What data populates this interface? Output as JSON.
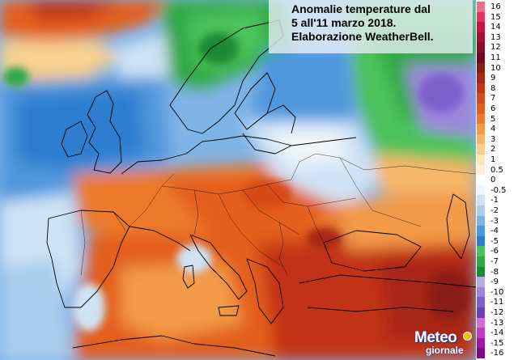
{
  "title": {
    "line1": "Anomalie temperature dal",
    "line2": "5 all'11 marzo 2018.",
    "line3": "Elaborazione WeatherBell."
  },
  "color_scale": [
    {
      "label": "16",
      "color": "#ed6f8e"
    },
    {
      "label": "15",
      "color": "#e3335f"
    },
    {
      "label": "14",
      "color": "#c8143f"
    },
    {
      "label": "13",
      "color": "#a8102f"
    },
    {
      "label": "12",
      "color": "#8a0c26"
    },
    {
      "label": "11",
      "color": "#6b0a1d"
    },
    {
      "label": "10",
      "color": "#8a1a12"
    },
    {
      "label": "9",
      "color": "#a82612"
    },
    {
      "label": "8",
      "color": "#c23314"
    },
    {
      "label": "7",
      "color": "#d74a18"
    },
    {
      "label": "6",
      "color": "#e35f1f"
    },
    {
      "label": "5",
      "color": "#ec7a2c"
    },
    {
      "label": "4",
      "color": "#f29a47"
    },
    {
      "label": "3",
      "color": "#f6b667"
    },
    {
      "label": "2",
      "color": "#f9d08e"
    },
    {
      "label": "1",
      "color": "#fbe6b8"
    },
    {
      "label": "0.5",
      "color": "#fdf3dc"
    },
    {
      "label": "0",
      "color": "#ffffff"
    },
    {
      "label": "-0.5",
      "color": "#eef5fb"
    },
    {
      "label": "-1",
      "color": "#cfe3f5"
    },
    {
      "label": "-2",
      "color": "#a8cdee"
    },
    {
      "label": "-3",
      "color": "#7fb3e6"
    },
    {
      "label": "-4",
      "color": "#4f97dc"
    },
    {
      "label": "-5",
      "color": "#2d7dcf"
    },
    {
      "label": "-6",
      "color": "#4cc25a"
    },
    {
      "label": "-7",
      "color": "#2ea844"
    },
    {
      "label": "-8",
      "color": "#1a8a35"
    },
    {
      "label": "-9",
      "color": "#b9a8e6"
    },
    {
      "label": "-10",
      "color": "#9d86dc"
    },
    {
      "label": "-11",
      "color": "#7d5fcc"
    },
    {
      "label": "-12",
      "color": "#6a3fb8"
    },
    {
      "label": "-13",
      "color": "#d76ed0"
    },
    {
      "label": "-14",
      "color": "#c43bc0"
    },
    {
      "label": "-15",
      "color": "#a514a8"
    },
    {
      "label": "-16",
      "color": "#7e0a86"
    }
  ],
  "logo": {
    "brand": "Meteo",
    "brand_sub": "giornale"
  },
  "colors": {
    "title_bg": "#e8f0f6",
    "logo_blue": "#1c3d8c"
  }
}
